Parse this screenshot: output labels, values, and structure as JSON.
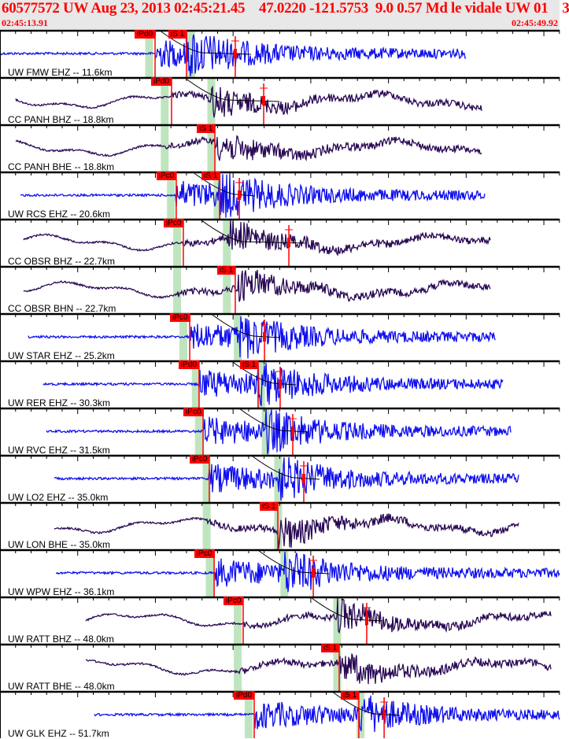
{
  "header": {
    "title": "60577572 UW Aug 23, 2013 02:45:21.45    47.0220 -121.5753  9.0 0.57 Md le vidale UW 01    3",
    "start_time": "02:45:13.91",
    "end_time": "02:45:49.92"
  },
  "time_span_s": 36.01,
  "colors": {
    "short_period": "#1010f0",
    "broadband": "#2a0a55",
    "pick": "#ff0000",
    "band": "#bfe5bf"
  },
  "channels": [
    {
      "label": "UW FMW EHZ -- 11.6km",
      "type": "short_period",
      "start": 0,
      "end": 30.0,
      "picks": [
        {
          "label": "iPd0",
          "t": 9.98
        },
        {
          "label": "iS 1",
          "t": 12.0
        }
      ],
      "coda": 15.14,
      "pth": 9.6,
      "sth": 12.3
    },
    {
      "label": "CC PANH BHZ -- 18.8km",
      "type": "broadband",
      "start": 1.0,
      "end": 31.0,
      "picks": [
        {
          "label": "iPd0",
          "t": 11.04
        }
      ],
      "coda": 16.97,
      "pth": 10.6,
      "sth": 13.6
    },
    {
      "label": "CC PANH BHE -- 18.8km",
      "type": "broadband",
      "start": 1.0,
      "end": 31.0,
      "picks": [
        {
          "label": "iS 1",
          "t": 13.83
        }
      ],
      "coda": null,
      "pth": 10.6,
      "sth": 13.6
    },
    {
      "label": "UW RCS EHZ -- 20.6km",
      "type": "short_period",
      "start": 1.3,
      "end": 31.2,
      "picks": [
        {
          "label": "iPc0",
          "t": 11.34
        },
        {
          "label": "iS 1",
          "t": 14.13
        }
      ],
      "coda": 15.4,
      "pth": 11.0,
      "sth": 14.0
    },
    {
      "label": "CC OBSR BHZ -- 22.7km",
      "type": "broadband",
      "start": 1.5,
      "end": 31.6,
      "picks": [
        {
          "label": "iPc0",
          "t": 11.8
        }
      ],
      "coda": 18.59,
      "pth": 11.4,
      "sth": 14.6
    },
    {
      "label": "CC OBSR BHN -- 22.7km",
      "type": "broadband",
      "start": 1.5,
      "end": 31.6,
      "picks": [
        {
          "label": "iS 1",
          "t": 15.14
        }
      ],
      "coda": null,
      "pth": 11.4,
      "sth": 14.6
    },
    {
      "label": "UW STAR EHZ -- 25.2km",
      "type": "short_period",
      "start": 1.8,
      "end": 31.9,
      "picks": [
        {
          "label": "iPc0",
          "t": 12.21
        }
      ],
      "coda": 17.02,
      "pth": 11.8,
      "sth": 15.3
    },
    {
      "label": "UW RER EHZ -- 30.3km",
      "type": "short_period",
      "start": 2.8,
      "end": 32.4,
      "picks": [
        {
          "label": "iPd0",
          "t": 12.81
        },
        {
          "label": "iS 1",
          "t": 16.61
        }
      ],
      "coda": 18.03,
      "pth": 12.6,
      "sth": 16.8
    },
    {
      "label": "UW RVC EHZ -- 31.5km",
      "type": "short_period",
      "start": 3.0,
      "end": 32.9,
      "picks": [
        {
          "label": "iPc0",
          "t": 13.07
        }
      ],
      "coda": 18.84,
      "pth": 12.8,
      "sth": 17.1
    },
    {
      "label": "UW LO2 EHZ -- 35.0km",
      "type": "short_period",
      "start": 3.5,
      "end": 33.4,
      "picks": [
        {
          "label": "iPc0",
          "t": 13.47
        }
      ],
      "coda": 19.55,
      "pth": 13.3,
      "sth": 17.9
    },
    {
      "label": "UW LON BHE -- 35.0km",
      "type": "broadband",
      "start": 3.5,
      "end": 33.4,
      "picks": [
        {
          "label": "iS 1",
          "t": 17.88
        }
      ],
      "coda": null,
      "pth": 13.3,
      "sth": 17.9
    },
    {
      "label": "UW WPW EHZ -- 36.1km",
      "type": "short_period",
      "start": 3.6,
      "end": 36.01,
      "picks": [
        {
          "label": "iPc0",
          "t": 13.78
        }
      ],
      "coda": 20.16,
      "pth": 13.5,
      "sth": 18.3
    },
    {
      "label": "UW RATT BHZ -- 48.0km",
      "type": "broadband",
      "start": 5.5,
      "end": 35.5,
      "picks": [
        {
          "label": "iPc0",
          "t": 15.65
        }
      ],
      "coda": 23.6,
      "pth": 15.3,
      "sth": 21.7
    },
    {
      "label": "UW RATT BHE -- 48.0km",
      "type": "broadband",
      "start": 5.5,
      "end": 35.5,
      "picks": [
        {
          "label": "iS 1",
          "t": 21.83
        }
      ],
      "coda": null,
      "pth": 15.3,
      "sth": 21.7
    },
    {
      "label": "UW GLK EHZ -- 51.7km",
      "type": "short_period",
      "start": 6.1,
      "end": 36.01,
      "picks": [
        {
          "label": "iPd0",
          "t": 16.36
        },
        {
          "label": "iS 1",
          "t": 23.09
        }
      ],
      "coda": 24.72,
      "pth": 16.0,
      "sth": 23.2
    }
  ]
}
